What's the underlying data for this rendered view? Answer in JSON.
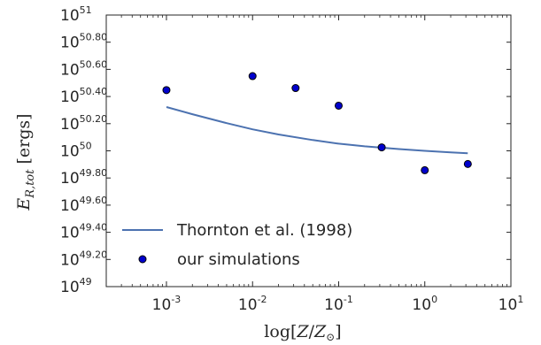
{
  "chart_data": {
    "type": "scatter",
    "x_scale": "log",
    "y_scale": "log",
    "xlim": [
      0.0002,
      10
    ],
    "ylim": [
      1e+49,
      1e+51
    ],
    "x_ticks": [
      {
        "value": 0.001,
        "base": "10",
        "exp": "-3"
      },
      {
        "value": 0.01,
        "base": "10",
        "exp": "-2"
      },
      {
        "value": 0.1,
        "base": "10",
        "exp": "-1"
      },
      {
        "value": 1,
        "base": "10",
        "exp": "0"
      },
      {
        "value": 10,
        "base": "10",
        "exp": "1"
      }
    ],
    "y_ticks": [
      {
        "value": 1e+49,
        "base": "10",
        "exp": "49"
      },
      {
        "value": 1.585e+49,
        "base": "10",
        "exp": "49.20"
      },
      {
        "value": 2.512e+49,
        "base": "10",
        "exp": "49.40"
      },
      {
        "value": 3.981e+49,
        "base": "10",
        "exp": "49.60"
      },
      {
        "value": 6.31e+49,
        "base": "10",
        "exp": "49.80"
      },
      {
        "value": 1e+50,
        "base": "10",
        "exp": "50"
      },
      {
        "value": 1.585e+50,
        "base": "10",
        "exp": "50.20"
      },
      {
        "value": 2.512e+50,
        "base": "10",
        "exp": "50.40"
      },
      {
        "value": 3.981e+50,
        "base": "10",
        "exp": "50.60"
      },
      {
        "value": 6.31e+50,
        "base": "10",
        "exp": "50.80"
      },
      {
        "value": 1e+51,
        "base": "10",
        "exp": "51"
      }
    ],
    "xlabel": "log[Z/Z⊙]",
    "ylabel": "E_R,tot [ergs]",
    "legend_position": "lower-left",
    "grid": false,
    "series": [
      {
        "name": "Thornton et al. (1998)",
        "kind": "line",
        "color": "#4c72b0",
        "x": [
          0.001,
          0.002,
          0.005,
          0.01,
          0.02,
          0.05,
          0.1,
          0.2,
          0.5,
          1,
          2,
          3.16
        ],
        "y": [
          2.1e+50,
          1.86e+50,
          1.6e+50,
          1.44e+50,
          1.32e+50,
          1.2e+50,
          1.13e+50,
          1.08e+50,
          1.03e+50,
          1e+50,
          9.75e+49,
          9.6e+49
        ]
      },
      {
        "name": "our simulations",
        "kind": "scatter",
        "color": "#0000cc",
        "x": [
          0.001,
          0.01,
          0.0316,
          0.1,
          0.316,
          1,
          3.16
        ],
        "y": [
          2.8e+50,
          3.55e+50,
          2.9e+50,
          2.15e+50,
          1.06e+50,
          7.2e+49,
          8e+49
        ]
      }
    ]
  }
}
